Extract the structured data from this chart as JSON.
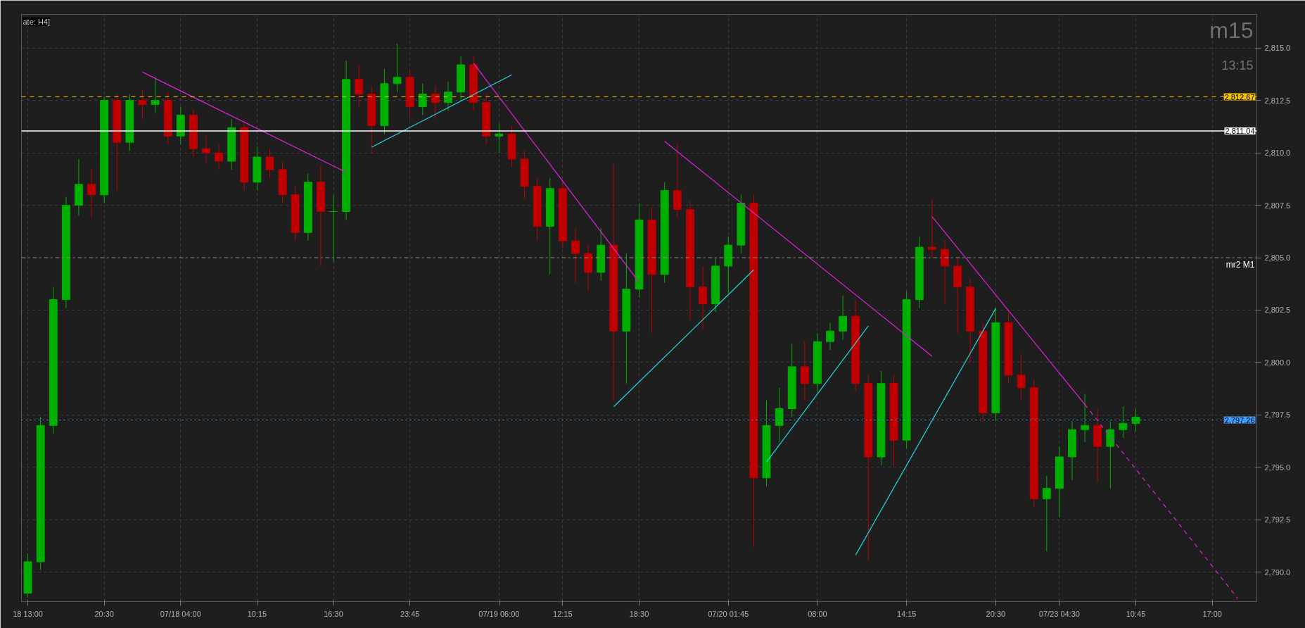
{
  "chart_data": {
    "type": "candlestick",
    "title": "m15",
    "subtitle": "13:15",
    "annotations": [
      "ate: H4]"
    ],
    "categories": [
      "18 13:00",
      null,
      null,
      null,
      null,
      null,
      "20:30",
      null,
      null,
      null,
      null,
      null,
      "07/18 04:00",
      null,
      null,
      null,
      null,
      null,
      "10:15",
      null,
      null,
      null,
      null,
      null,
      "16:30",
      null,
      null,
      null,
      null,
      null,
      "23:45",
      null,
      null,
      null,
      null,
      null,
      null,
      "07/19 06:00",
      null,
      null,
      null,
      null,
      "12:15",
      null,
      null,
      null,
      null,
      null,
      "18:30",
      null,
      null,
      null,
      null,
      null,
      null,
      "07/20 01:45",
      null,
      null,
      null,
      null,
      null,
      null,
      "08:00",
      null,
      null,
      null,
      null,
      null,
      null,
      "14:15",
      null,
      null,
      null,
      null,
      null,
      null,
      "20:30",
      null,
      null,
      null,
      null,
      "07/23 04:30",
      null,
      null,
      null,
      null,
      null,
      "10:45",
      null,
      null,
      null,
      null,
      null,
      "17:00",
      null,
      null,
      null
    ],
    "ohlc": [
      [
        2789.0,
        2790.9,
        2788.8,
        2790.5
      ],
      [
        2790.5,
        2797.4,
        2790.1,
        2797.0
      ],
      [
        2797.0,
        2803.6,
        2796.6,
        2803.0
      ],
      [
        2803.0,
        2807.9,
        2802.6,
        2807.5
      ],
      [
        2807.5,
        2809.7,
        2807.0,
        2808.5
      ],
      [
        2808.5,
        2809.2,
        2806.9,
        2808.0
      ],
      [
        2808.0,
        2812.7,
        2807.6,
        2812.5
      ],
      [
        2812.5,
        2812.8,
        2808.2,
        2810.5
      ],
      [
        2810.5,
        2812.8,
        2810.1,
        2812.5
      ],
      [
        2812.5,
        2813.0,
        2811.6,
        2812.3
      ],
      [
        2812.3,
        2813.6,
        2811.9,
        2812.5
      ],
      [
        2812.5,
        2812.9,
        2810.4,
        2810.8
      ],
      [
        2810.8,
        2812.2,
        2810.4,
        2811.8
      ],
      [
        2811.8,
        2812.1,
        2809.8,
        2810.2
      ],
      [
        2810.2,
        2810.8,
        2809.5,
        2810.0
      ],
      [
        2810.0,
        2810.4,
        2809.2,
        2809.6
      ],
      [
        2809.6,
        2811.6,
        2809.2,
        2811.2
      ],
      [
        2811.2,
        2811.6,
        2808.2,
        2808.6
      ],
      [
        2808.6,
        2810.3,
        2808.2,
        2809.8
      ],
      [
        2809.8,
        2810.2,
        2808.8,
        2809.2
      ],
      [
        2809.2,
        2809.6,
        2807.6,
        2808.0
      ],
      [
        2808.0,
        2808.4,
        2805.8,
        2806.2
      ],
      [
        2806.2,
        2809.0,
        2805.8,
        2808.6
      ],
      [
        2808.6,
        2809.4,
        2804.6,
        2807.2
      ],
      [
        2807.2,
        2808.0,
        2804.8,
        2807.2
      ],
      [
        2807.2,
        2814.4,
        2806.8,
        2813.5
      ],
      [
        2813.5,
        2814.2,
        2812.2,
        2812.8
      ],
      [
        2812.8,
        2813.2,
        2810.0,
        2811.3
      ],
      [
        2811.3,
        2814.0,
        2810.9,
        2813.3
      ],
      [
        2813.3,
        2815.2,
        2812.9,
        2813.6
      ],
      [
        2813.6,
        2814.0,
        2811.6,
        2812.2
      ],
      [
        2812.2,
        2813.3,
        2811.8,
        2812.8
      ],
      [
        2812.8,
        2813.2,
        2811.6,
        2812.4
      ],
      [
        2812.4,
        2813.4,
        2812.0,
        2812.9
      ],
      [
        2812.9,
        2814.6,
        2812.5,
        2814.2
      ],
      [
        2814.2,
        2814.6,
        2812.0,
        2812.4
      ],
      [
        2812.4,
        2812.8,
        2810.4,
        2810.8
      ],
      [
        2810.8,
        2811.4,
        2810.0,
        2810.9
      ],
      [
        2810.9,
        2811.3,
        2809.3,
        2809.7
      ],
      [
        2809.7,
        2810.1,
        2807.8,
        2808.4
      ],
      [
        2808.4,
        2808.8,
        2805.8,
        2806.5
      ],
      [
        2806.5,
        2808.8,
        2804.2,
        2808.3
      ],
      [
        2808.3,
        2808.7,
        2805.4,
        2805.8
      ],
      [
        2805.8,
        2806.4,
        2803.8,
        2805.2
      ],
      [
        2805.2,
        2805.6,
        2803.4,
        2804.3
      ],
      [
        2804.3,
        2806.4,
        2803.9,
        2805.6
      ],
      [
        2805.6,
        2809.5,
        2798.2,
        2801.5
      ],
      [
        2801.5,
        2805.2,
        2799.0,
        2803.5
      ],
      [
        2803.5,
        2807.6,
        2803.1,
        2806.8
      ],
      [
        2806.8,
        2807.4,
        2801.4,
        2804.2
      ],
      [
        2804.2,
        2808.6,
        2803.8,
        2808.2
      ],
      [
        2808.2,
        2810.5,
        2806.9,
        2807.3
      ],
      [
        2807.3,
        2807.7,
        2802.0,
        2803.6
      ],
      [
        2803.6,
        2804.6,
        2801.6,
        2802.8
      ],
      [
        2802.8,
        2805.0,
        2802.4,
        2804.6
      ],
      [
        2804.6,
        2806.0,
        2803.3,
        2805.6
      ],
      [
        2805.6,
        2808.0,
        2805.2,
        2807.6
      ],
      [
        2807.6,
        2808.0,
        2791.2,
        2794.5
      ],
      [
        2794.5,
        2798.2,
        2794.1,
        2797.0
      ],
      [
        2797.0,
        2798.8,
        2796.2,
        2797.8
      ],
      [
        2797.8,
        2800.9,
        2797.4,
        2799.8
      ],
      [
        2799.8,
        2801.0,
        2798.2,
        2799.0
      ],
      [
        2799.0,
        2801.4,
        2798.6,
        2801.0
      ],
      [
        2801.0,
        2801.9,
        2800.6,
        2801.5
      ],
      [
        2801.5,
        2803.2,
        2801.1,
        2802.2
      ],
      [
        2802.2,
        2803.0,
        2798.6,
        2799.0
      ],
      [
        2799.0,
        2799.4,
        2790.6,
        2795.5
      ],
      [
        2795.5,
        2799.6,
        2795.1,
        2799.0
      ],
      [
        2799.0,
        2799.4,
        2795.0,
        2796.3
      ],
      [
        2796.3,
        2803.4,
        2795.9,
        2803.0
      ],
      [
        2803.0,
        2806.0,
        2802.6,
        2805.5
      ],
      [
        2805.5,
        2807.8,
        2805.0,
        2805.4
      ],
      [
        2805.4,
        2805.8,
        2802.8,
        2804.6
      ],
      [
        2804.6,
        2805.0,
        2801.4,
        2803.6
      ],
      [
        2803.6,
        2804.0,
        2800.0,
        2801.5
      ],
      [
        2801.5,
        2801.9,
        2797.2,
        2797.6
      ],
      [
        2797.6,
        2802.6,
        2797.2,
        2801.9
      ],
      [
        2801.9,
        2802.4,
        2799.0,
        2799.4
      ],
      [
        2799.4,
        2800.4,
        2798.2,
        2798.8
      ],
      [
        2798.8,
        2799.2,
        2793.1,
        2793.5
      ],
      [
        2793.5,
        2794.6,
        2791.0,
        2794.0
      ],
      [
        2794.0,
        2796.0,
        2792.6,
        2795.5
      ],
      [
        2795.5,
        2797.2,
        2794.4,
        2796.8
      ],
      [
        2796.8,
        2798.5,
        2796.2,
        2797.0
      ],
      [
        2797.0,
        2797.8,
        2794.3,
        2796.0
      ],
      [
        2796.0,
        2797.2,
        2794.0,
        2796.8
      ],
      [
        2796.8,
        2797.9,
        2796.4,
        2797.1
      ],
      [
        2797.1,
        2797.8,
        2796.7,
        2797.4
      ],
      null,
      null,
      null,
      null,
      null,
      null,
      null,
      null,
      null
    ],
    "series": [
      {
        "type": "line",
        "color": "#e020e0",
        "values": [
          null,
          null,
          null,
          null,
          null,
          null,
          null,
          null,
          null,
          2813.85,
          null,
          null,
          null,
          null,
          null,
          null,
          null,
          null,
          null,
          null,
          null,
          null,
          null,
          null,
          null,
          2809.07,
          null,
          null,
          null,
          null,
          null,
          null,
          null,
          null,
          null,
          null,
          null,
          null,
          null,
          null,
          null,
          null,
          null,
          null,
          null,
          null,
          null,
          null,
          null,
          null,
          null,
          null,
          null,
          null,
          null,
          null,
          null,
          null,
          null,
          null,
          null,
          null,
          null,
          null,
          null,
          null,
          null,
          null,
          null,
          null,
          null,
          null,
          null,
          null,
          null,
          null,
          null,
          null,
          null,
          null,
          null,
          null,
          null,
          null,
          null,
          null,
          null,
          null,
          null,
          null,
          null,
          null,
          null,
          null,
          null,
          null,
          null
        ]
      },
      {
        "type": "line",
        "color": "#e020e0",
        "values": [
          null,
          null,
          null,
          null,
          null,
          null,
          null,
          null,
          null,
          null,
          null,
          null,
          null,
          null,
          null,
          null,
          null,
          null,
          null,
          null,
          null,
          null,
          null,
          null,
          null,
          null,
          null,
          null,
          null,
          null,
          null,
          null,
          null,
          null,
          null,
          2814.27,
          null,
          null,
          null,
          null,
          null,
          null,
          null,
          null,
          null,
          null,
          null,
          null,
          2803.83,
          null,
          null,
          null,
          null,
          null,
          null,
          null,
          null,
          null,
          null,
          null,
          null,
          null,
          null,
          null,
          null,
          null,
          null,
          null,
          null,
          null,
          null,
          null,
          null,
          null,
          null,
          null,
          null,
          null,
          null,
          null,
          null,
          null,
          null,
          null,
          null,
          null,
          null,
          null,
          null,
          null,
          null,
          null,
          null,
          null,
          null,
          null,
          null
        ]
      },
      {
        "type": "line",
        "color": "#e020e0",
        "values": [
          null,
          null,
          null,
          null,
          null,
          null,
          null,
          null,
          null,
          null,
          null,
          null,
          null,
          null,
          null,
          null,
          null,
          null,
          null,
          null,
          null,
          null,
          null,
          null,
          null,
          null,
          null,
          null,
          null,
          null,
          null,
          null,
          null,
          null,
          null,
          null,
          null,
          null,
          null,
          null,
          null,
          null,
          null,
          null,
          null,
          null,
          null,
          null,
          null,
          null,
          2810.55,
          null,
          null,
          null,
          null,
          null,
          null,
          null,
          null,
          null,
          null,
          null,
          null,
          null,
          null,
          null,
          null,
          null,
          null,
          null,
          null,
          2800.3,
          null,
          null,
          null,
          null,
          null,
          null,
          null,
          null,
          null,
          null,
          null,
          null,
          null,
          null,
          null,
          null,
          null,
          null,
          null,
          null,
          null,
          null,
          null,
          null,
          null
        ]
      },
      {
        "type": "line",
        "color": "#e020e0",
        "values": [
          null,
          null,
          null,
          null,
          null,
          null,
          null,
          null,
          null,
          null,
          null,
          null,
          null,
          null,
          null,
          null,
          null,
          null,
          null,
          null,
          null,
          null,
          null,
          null,
          null,
          null,
          null,
          null,
          null,
          null,
          null,
          null,
          null,
          null,
          null,
          null,
          null,
          null,
          null,
          null,
          null,
          null,
          null,
          null,
          null,
          null,
          null,
          null,
          null,
          null,
          null,
          null,
          null,
          null,
          null,
          null,
          null,
          null,
          null,
          null,
          null,
          null,
          null,
          null,
          null,
          null,
          null,
          null,
          null,
          null,
          null,
          2806.96,
          null,
          null,
          null,
          null,
          null,
          null,
          null,
          null,
          null,
          null,
          null,
          2798.0,
          null,
          null,
          null,
          null,
          null,
          null,
          null,
          null,
          null,
          null,
          null,
          null,
          null
        ]
      },
      {
        "type": "line",
        "color": "#e020e0",
        "line_style": "dashed",
        "values": [
          null,
          null,
          null,
          null,
          null,
          null,
          null,
          null,
          null,
          null,
          null,
          null,
          null,
          null,
          null,
          null,
          null,
          null,
          null,
          null,
          null,
          null,
          null,
          null,
          null,
          null,
          null,
          null,
          null,
          null,
          null,
          null,
          null,
          null,
          null,
          null,
          null,
          null,
          null,
          null,
          null,
          null,
          null,
          null,
          null,
          null,
          null,
          null,
          null,
          null,
          null,
          null,
          null,
          null,
          null,
          null,
          null,
          null,
          null,
          null,
          null,
          null,
          null,
          null,
          null,
          null,
          null,
          null,
          null,
          null,
          null,
          null,
          null,
          null,
          null,
          null,
          null,
          null,
          null,
          null,
          null,
          null,
          null,
          2798.0,
          null,
          null,
          null,
          null,
          null,
          null,
          null,
          null,
          null,
          null,
          null,
          2788.75,
          null
        ]
      },
      {
        "type": "line",
        "color": "#20d8e0",
        "values": [
          null,
          null,
          null,
          null,
          null,
          null,
          null,
          null,
          null,
          null,
          null,
          null,
          null,
          null,
          null,
          null,
          null,
          null,
          null,
          null,
          null,
          null,
          null,
          null,
          null,
          null,
          null,
          2810.27,
          null,
          null,
          null,
          null,
          null,
          null,
          null,
          null,
          null,
          null,
          2813.72,
          null,
          null,
          null,
          null,
          null,
          null,
          null,
          null,
          null,
          null,
          null,
          null,
          null,
          null,
          null,
          null,
          null,
          null,
          null,
          null,
          null,
          null,
          null,
          null,
          null,
          null,
          null,
          null,
          null,
          null,
          null,
          null,
          null,
          null,
          null,
          null,
          null,
          null,
          null,
          null,
          null,
          null,
          null,
          null,
          null,
          null,
          null,
          null,
          null,
          null,
          null,
          null,
          null,
          null,
          null,
          null,
          null,
          null
        ]
      },
      {
        "type": "line",
        "color": "#20d8e0",
        "values": [
          null,
          null,
          null,
          null,
          null,
          null,
          null,
          null,
          null,
          null,
          null,
          null,
          null,
          null,
          null,
          null,
          null,
          null,
          null,
          null,
          null,
          null,
          null,
          null,
          null,
          null,
          null,
          null,
          null,
          null,
          null,
          null,
          null,
          null,
          null,
          null,
          null,
          null,
          null,
          null,
          null,
          null,
          null,
          null,
          null,
          null,
          2797.89,
          null,
          null,
          null,
          null,
          null,
          null,
          null,
          null,
          null,
          null,
          2804.42,
          null,
          null,
          null,
          null,
          null,
          null,
          null,
          null,
          null,
          null,
          null,
          null,
          null,
          null,
          null,
          null,
          null,
          null,
          null,
          null,
          null,
          null,
          null,
          null,
          null,
          null,
          null,
          null,
          null,
          null,
          null,
          null,
          null,
          null,
          null,
          null,
          null,
          null,
          null
        ]
      },
      {
        "type": "line",
        "color": "#20d8e0",
        "values": [
          null,
          null,
          null,
          null,
          null,
          null,
          null,
          null,
          null,
          null,
          null,
          null,
          null,
          null,
          null,
          null,
          null,
          null,
          null,
          null,
          null,
          null,
          null,
          null,
          null,
          null,
          null,
          null,
          null,
          null,
          null,
          null,
          null,
          null,
          null,
          null,
          null,
          null,
          null,
          null,
          null,
          null,
          null,
          null,
          null,
          null,
          null,
          null,
          null,
          null,
          null,
          null,
          null,
          null,
          null,
          null,
          null,
          null,
          2795.25,
          null,
          null,
          null,
          null,
          null,
          null,
          null,
          2801.75,
          null,
          null,
          null,
          null,
          null,
          null,
          null,
          null,
          null,
          null,
          null,
          null,
          null,
          null,
          null,
          null,
          null,
          null,
          null,
          null,
          null,
          null,
          null,
          null,
          null,
          null,
          null,
          null,
          null,
          null
        ]
      },
      {
        "type": "line",
        "color": "#20d8e0",
        "values": [
          null,
          null,
          null,
          null,
          null,
          null,
          null,
          null,
          null,
          null,
          null,
          null,
          null,
          null,
          null,
          null,
          null,
          null,
          null,
          null,
          null,
          null,
          null,
          null,
          null,
          null,
          null,
          null,
          null,
          null,
          null,
          null,
          null,
          null,
          null,
          null,
          null,
          null,
          null,
          null,
          null,
          null,
          null,
          null,
          null,
          null,
          null,
          null,
          null,
          null,
          null,
          null,
          null,
          null,
          null,
          null,
          null,
          null,
          null,
          null,
          null,
          null,
          null,
          null,
          null,
          2790.82,
          null,
          null,
          null,
          null,
          null,
          null,
          null,
          null,
          null,
          null,
          2802.58,
          null,
          null,
          null,
          null,
          null,
          null,
          null,
          null,
          null,
          null,
          null,
          null,
          null,
          null,
          null,
          null,
          null,
          null,
          null,
          null
        ]
      }
    ],
    "ref_lines": [
      {
        "axis": "y",
        "value": 2812.67,
        "label": "2,812.67",
        "color": "#f5c000",
        "line_style": "dashed"
      },
      {
        "axis": "y",
        "value": 2811.04,
        "label": "2,811.04",
        "color": "#ffffff",
        "line_style": "solid"
      },
      {
        "axis": "y",
        "value": 2805.0,
        "label": "mr2 M1",
        "color": "#8a8a8a",
        "line_style": "dashdot"
      },
      {
        "axis": "y",
        "value": 2797.26,
        "label": "2,797.26",
        "color": "#3fa0ff",
        "line_style": "dotted"
      }
    ],
    "ylim": [
      2788.6,
      2816.6
    ],
    "yticks": [
      {
        "value": 2790,
        "label": "2,790.0"
      },
      {
        "value": 2792.5,
        "label": "2,792.5"
      },
      {
        "value": 2795,
        "label": "2,795.0"
      },
      {
        "value": 2797.5,
        "label": "2,797.5"
      },
      {
        "value": 2800,
        "label": "2,800.0"
      },
      {
        "value": 2802.5,
        "label": "2,802.5"
      },
      {
        "value": 2805,
        "label": "2,805.0"
      },
      {
        "value": 2807.5,
        "label": "2,807.5"
      },
      {
        "value": 2810,
        "label": "2,810.0"
      },
      {
        "value": 2812.5,
        "label": "2,812.5"
      },
      {
        "value": 2815,
        "label": "2,815.0"
      }
    ],
    "grid": true
  }
}
